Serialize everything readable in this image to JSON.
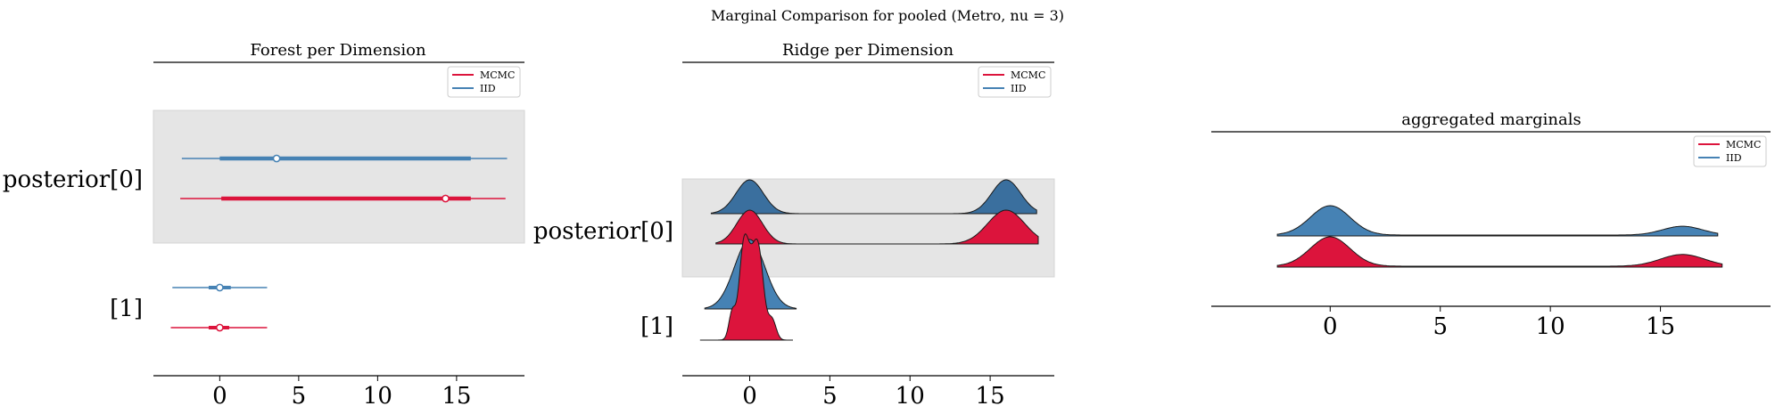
{
  "figure": {
    "suptitle": "Marginal Comparison for pooled (Metro, nu = 3)"
  },
  "colors": {
    "mcmc": "#dc143c",
    "iid": "#4682b4",
    "iid_dark": "#3a6f9e",
    "band": "#e5e5e5"
  },
  "chart_data": [
    {
      "type": "forest",
      "title": "Forest per Dimension",
      "xlim": [
        -4.2,
        19.3
      ],
      "xticks": [
        0,
        5,
        10,
        15
      ],
      "labels": [
        "posterior[0]",
        "[1]"
      ],
      "legend": {
        "placement": "top-right",
        "entries": [
          "MCMC",
          "IID"
        ]
      },
      "series": [
        {
          "name": "IID",
          "dimension": "posterior[0]",
          "hdi94": [
            -2.4,
            18.2
          ],
          "hdi50": [
            0.0,
            15.9
          ],
          "point": 3.6
        },
        {
          "name": "MCMC",
          "dimension": "posterior[0]",
          "hdi94": [
            -2.5,
            18.1
          ],
          "hdi50": [
            0.1,
            15.9
          ],
          "point": 14.3
        },
        {
          "name": "IID",
          "dimension": "[1]",
          "hdi94": [
            -3.0,
            3.0
          ],
          "hdi50": [
            -0.7,
            0.7
          ],
          "point": 0.0
        },
        {
          "name": "MCMC",
          "dimension": "[1]",
          "hdi94": [
            -3.1,
            3.0
          ],
          "hdi50": [
            -0.7,
            0.6
          ],
          "point": 0.0
        }
      ]
    },
    {
      "type": "ridge",
      "title": "Ridge per Dimension",
      "xlim": [
        -4.2,
        19.0
      ],
      "xticks": [
        0,
        5,
        10,
        15
      ],
      "labels": [
        "posterior[0]",
        "[1]"
      ],
      "legend": {
        "placement": "top-right",
        "entries": [
          "MCMC",
          "IID"
        ]
      },
      "series": [
        {
          "name": "IID",
          "dimension": "posterior[0]",
          "range": [
            -2.4,
            17.9
          ],
          "peaks": [
            [
              0.0,
              1.0,
              0.85
            ],
            [
              16.0,
              1.0,
              0.9
            ]
          ]
        },
        {
          "name": "MCMC",
          "dimension": "posterior[0]",
          "range": [
            -2.1,
            18.0
          ],
          "peaks": [
            [
              0.0,
              1.0,
              0.8
            ],
            [
              16.0,
              1.0,
              1.15
            ]
          ]
        },
        {
          "name": "IID",
          "dimension": "[1]",
          "range": [
            -2.8,
            2.9
          ],
          "peaks": [
            [
              0.0,
              1.0,
              0.95
            ]
          ]
        },
        {
          "name": "MCMC",
          "dimension": "[1]",
          "range": [
            -3.1,
            2.7
          ],
          "peaks": [
            [
              0.0,
              1.0,
              0.5
            ],
            [
              -0.4,
              0.55,
              0.25
            ],
            [
              0.6,
              0.7,
              0.3
            ],
            [
              -1.1,
              0.3,
              0.2
            ],
            [
              1.4,
              0.25,
              0.25
            ]
          ]
        }
      ]
    },
    {
      "type": "ridge",
      "title": "aggregated marginals",
      "xlim": [
        -5.4,
        20.0
      ],
      "xticks": [
        0,
        5,
        10,
        15
      ],
      "labels": [],
      "legend": {
        "placement": "top-right",
        "entries": [
          "MCMC",
          "IID"
        ]
      },
      "series": [
        {
          "name": "IID",
          "range": [
            -2.4,
            17.6
          ],
          "peaks": [
            [
              0.0,
              1.0,
              0.9
            ],
            [
              16.0,
              0.3,
              0.9
            ]
          ],
          "baseline": 0.03
        },
        {
          "name": "MCMC",
          "range": [
            -2.4,
            17.8
          ],
          "peaks": [
            [
              0.0,
              1.0,
              0.9
            ],
            [
              16.0,
              0.4,
              1.0
            ]
          ],
          "baseline": 0.03
        }
      ]
    }
  ]
}
